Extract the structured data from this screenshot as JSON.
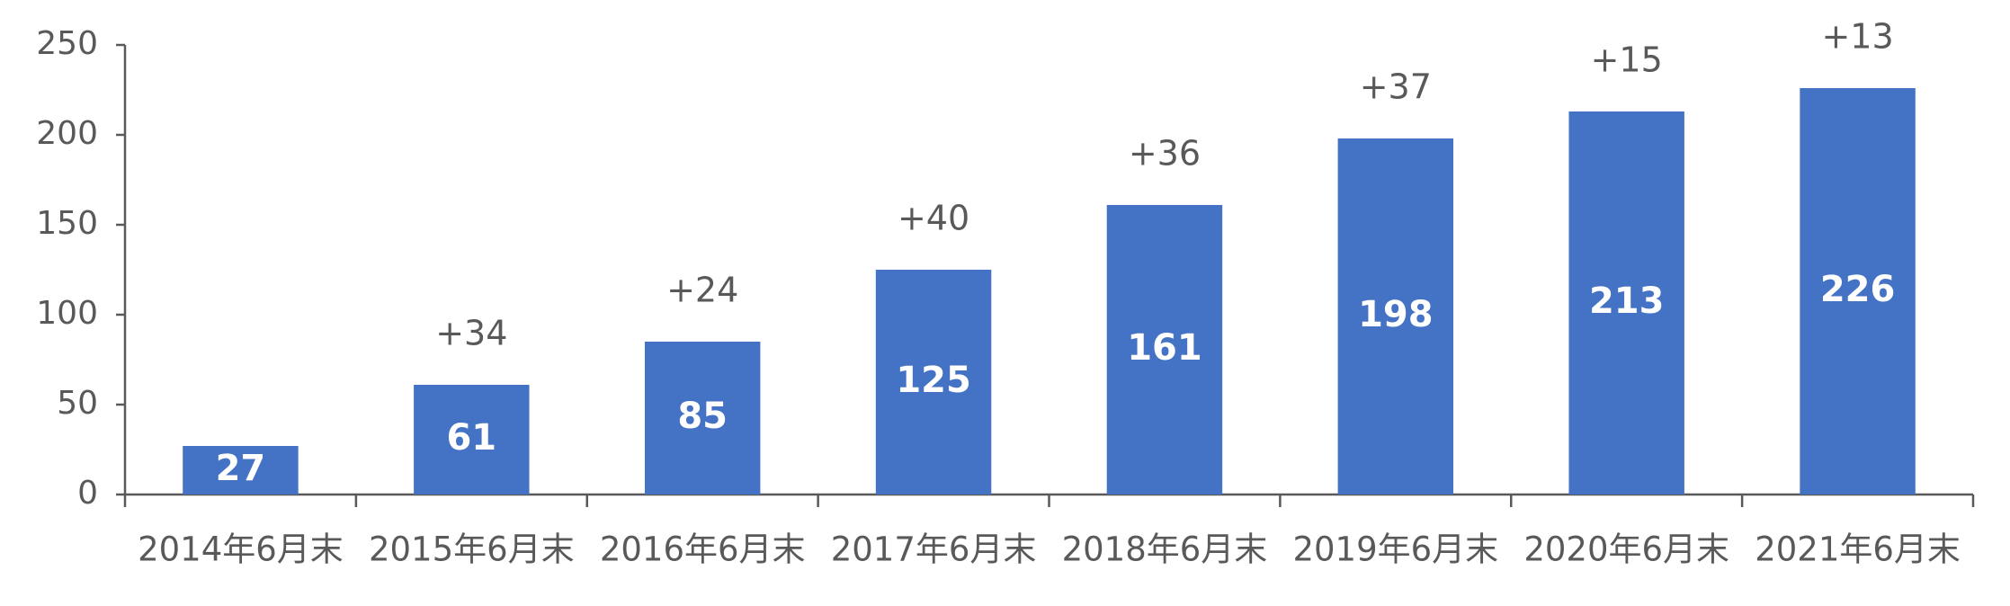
{
  "chart_data": {
    "type": "bar",
    "categories": [
      "2014年6月末",
      "2015年6月末",
      "2016年6月末",
      "2017年6月末",
      "2018年6月末",
      "2019年6月末",
      "2020年6月末",
      "2021年6月末"
    ],
    "values": [
      27,
      61,
      85,
      125,
      161,
      198,
      213,
      226
    ],
    "annotations": [
      null,
      "+34",
      "+24",
      "+40",
      "+36",
      "+37",
      "+15",
      "+13"
    ],
    "color": "#4472c4",
    "ylim": [
      0,
      250
    ],
    "yticks": [
      0,
      50,
      100,
      150,
      200,
      250
    ],
    "grid": false
  }
}
